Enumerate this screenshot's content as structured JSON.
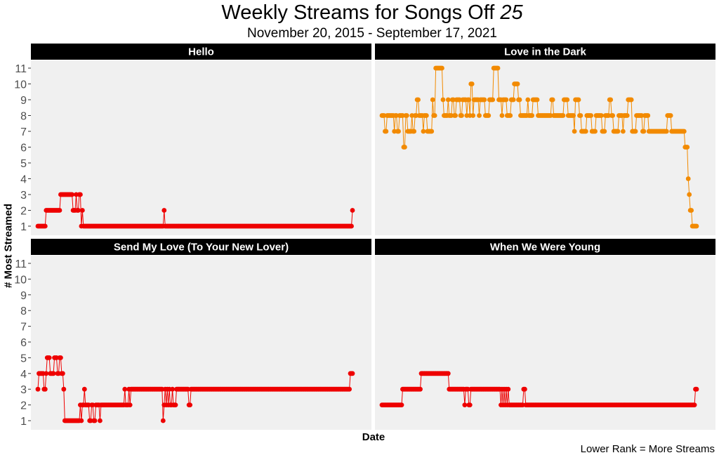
{
  "title_text": "Weekly Streams for Songs Off",
  "title_italic": "25",
  "subtitle": "November 20, 2015 - September 17, 2021",
  "caption": "Lower Rank = More Streams",
  "chart_data": {
    "type": "line",
    "layout": "facet-grid-2x2",
    "xlabel": "Date",
    "ylabel": "# Most Streamed",
    "x_range": [
      "2015-11-20",
      "2021-09-17"
    ],
    "x_step": "weekly",
    "ylim": [
      1,
      11
    ],
    "y_ticks": [
      1,
      2,
      3,
      4,
      5,
      6,
      7,
      8,
      9,
      10,
      11
    ],
    "grid": false,
    "panel_background": "#f0f0f0",
    "strip_background": "#000000",
    "series": [
      {
        "name": "Hello",
        "color": "#ee0000",
        "x": [
          "2015-11-20",
          "2016-01-08",
          "2016-01-15",
          "2016-04-15",
          "2016-04-22",
          "2016-07-08",
          "2016-07-15",
          "2016-07-29",
          "2016-08-05",
          "2016-08-12",
          "2016-08-19",
          "2016-08-26",
          "2016-09-02",
          "2016-09-09",
          "2016-09-16",
          "2016-09-23",
          "2016-09-30",
          "2018-03-16",
          "2018-03-23",
          "2018-03-30",
          "2021-09-03",
          "2021-09-10",
          "2021-09-17"
        ],
        "values": [
          1,
          1,
          2,
          2,
          3,
          3,
          2,
          2,
          3,
          2,
          2,
          3,
          3,
          1,
          2,
          1,
          1,
          1,
          2,
          1,
          1,
          1,
          2
        ]
      },
      {
        "name": "Love in the Dark",
        "color": "#f28a00",
        "x": [
          "2015-11-20",
          "2015-12-04",
          "2015-12-11",
          "2015-12-25",
          "2016-01-01",
          "2016-02-12",
          "2016-02-19",
          "2016-03-04",
          "2016-03-11",
          "2016-03-18",
          "2016-04-08",
          "2016-04-15",
          "2016-04-29",
          "2016-05-13",
          "2016-06-10",
          "2016-06-17",
          "2016-07-01",
          "2016-07-15",
          "2016-07-29",
          "2016-08-26",
          "2016-09-02",
          "2016-09-09",
          "2016-09-23",
          "2016-10-28",
          "2016-11-04",
          "2016-11-18",
          "2017-01-06",
          "2017-01-13",
          "2017-02-10",
          "2017-02-17",
          "2017-03-10",
          "2017-03-24",
          "2017-04-07",
          "2017-05-05",
          "2017-05-19",
          "2017-06-16",
          "2017-06-23",
          "2017-07-07",
          "2017-07-14",
          "2017-07-28",
          "2017-08-04",
          "2017-09-01",
          "2017-09-08",
          "2017-09-15",
          "2017-10-20",
          "2017-11-17",
          "2017-12-15",
          "2018-01-12",
          "2018-01-19",
          "2018-02-09",
          "2018-02-16",
          "2018-03-02",
          "2018-03-16",
          "2018-04-13",
          "2018-05-04",
          "2018-06-01",
          "2018-06-15",
          "2018-08-03",
          "2018-08-10",
          "2018-09-07",
          "2018-09-14",
          "2018-10-12",
          "2019-01-11",
          "2019-01-25",
          "2019-03-01",
          "2019-03-08",
          "2019-04-05",
          "2019-05-03",
          "2019-06-07",
          "2019-06-14",
          "2019-06-21",
          "2019-07-19",
          "2019-08-02",
          "2019-08-09",
          "2019-09-06",
          "2019-10-11",
          "2019-11-08",
          "2019-11-29",
          "2019-12-20",
          "2020-01-10",
          "2020-02-07",
          "2020-02-21",
          "2020-03-06",
          "2020-03-13",
          "2020-04-10",
          "2020-05-08",
          "2020-05-15",
          "2020-06-12",
          "2020-07-10",
          "2020-08-07",
          "2020-09-04",
          "2020-09-18",
          "2020-10-02",
          "2020-10-30",
          "2020-11-13",
          "2021-01-08",
          "2021-02-05",
          "2021-03-05",
          "2021-04-02",
          "2021-04-30",
          "2021-05-28",
          "2021-06-25",
          "2021-07-02",
          "2021-07-23",
          "2021-07-30",
          "2021-08-06",
          "2021-08-20",
          "2021-08-27",
          "2021-09-03",
          "2021-09-10",
          "2021-09-17"
        ],
        "values": [
          8,
          8,
          7,
          8,
          8,
          7,
          8,
          7,
          7,
          8,
          8,
          6,
          8,
          7,
          8,
          7,
          8,
          9,
          8,
          7,
          8,
          8,
          7,
          9,
          8,
          11,
          9,
          8,
          9,
          8,
          9,
          8,
          9,
          8,
          9,
          8,
          9,
          8,
          10,
          8,
          9,
          9,
          8,
          9,
          8,
          9,
          11,
          11,
          9,
          8,
          9,
          9,
          8,
          9,
          10,
          9,
          8,
          9,
          8,
          9,
          9,
          8,
          9,
          8,
          8,
          8,
          9,
          8,
          8,
          7,
          9,
          8,
          7,
          7,
          8,
          7,
          8,
          8,
          7,
          8,
          9,
          8,
          7,
          7,
          8,
          7,
          8,
          9,
          7,
          8,
          8,
          7,
          8,
          7,
          7,
          7,
          7,
          8,
          7,
          7,
          7,
          7,
          6,
          4,
          3,
          2,
          1,
          1,
          1,
          1,
          1
        ]
      },
      {
        "name": "Send My Love (To Your New Lover)",
        "color": "#ee0000",
        "x": [
          "2015-11-20",
          "2015-11-27",
          "2015-12-25",
          "2016-01-01",
          "2016-01-15",
          "2016-01-22",
          "2016-02-05",
          "2016-02-12",
          "2016-03-04",
          "2016-03-11",
          "2016-03-25",
          "2016-04-01",
          "2016-04-15",
          "2016-04-22",
          "2016-04-29",
          "2016-05-13",
          "2016-05-20",
          "2016-05-27",
          "2016-08-26",
          "2016-09-02",
          "2016-09-09",
          "2016-09-16",
          "2016-09-23",
          "2016-09-30",
          "2016-10-07",
          "2016-10-14",
          "2016-10-21",
          "2016-11-04",
          "2016-11-11",
          "2016-11-18",
          "2016-12-02",
          "2016-12-09",
          "2016-12-16",
          "2016-12-23",
          "2017-01-06",
          "2017-01-13",
          "2017-01-20",
          "2017-01-27",
          "2017-02-03",
          "2017-02-10",
          "2017-02-17",
          "2017-02-24",
          "2017-03-03",
          "2017-03-10",
          "2017-03-17",
          "2017-03-24",
          "2017-03-31",
          "2017-04-07",
          "2017-04-14",
          "2017-04-21",
          "2017-05-05",
          "2017-06-16",
          "2017-06-23",
          "2017-06-30",
          "2017-07-07",
          "2017-07-21",
          "2017-07-28",
          "2017-08-04",
          "2017-08-11",
          "2018-03-16",
          "2018-03-23",
          "2018-03-30",
          "2018-04-06",
          "2018-04-13",
          "2018-04-20",
          "2018-04-27",
          "2018-05-04",
          "2018-05-11",
          "2018-05-18",
          "2018-05-25",
          "2018-06-08",
          "2018-06-15",
          "2018-06-22",
          "2018-08-31",
          "2018-09-07",
          "2018-09-14",
          "2018-09-21",
          "2021-08-20",
          "2021-08-27",
          "2021-09-03",
          "2021-09-10",
          "2021-09-17"
        ],
        "values": [
          3,
          4,
          4,
          3,
          4,
          5,
          5,
          4,
          4,
          5,
          5,
          4,
          5,
          5,
          4,
          3,
          1,
          1,
          1,
          2,
          1,
          2,
          2,
          3,
          2,
          2,
          2,
          1,
          1,
          2,
          1,
          1,
          2,
          2,
          2,
          1,
          2,
          2,
          2,
          2,
          2,
          2,
          2,
          2,
          2,
          2,
          2,
          2,
          2,
          2,
          2,
          2,
          2,
          3,
          2,
          2,
          3,
          2,
          3,
          1,
          2,
          3,
          2,
          3,
          2,
          3,
          2,
          2,
          3,
          2,
          2,
          3,
          3,
          3,
          2,
          2,
          3,
          3,
          3,
          4,
          4,
          4
        ]
      },
      {
        "name": "When We Were Young",
        "color": "#ee0000",
        "x": [
          "2015-11-20",
          "2016-04-01",
          "2016-04-08",
          "2016-08-05",
          "2016-08-12",
          "2017-02-10",
          "2017-02-17",
          "2017-05-26",
          "2017-06-02",
          "2017-06-09",
          "2017-06-30",
          "2017-07-07",
          "2017-07-14",
          "2018-01-26",
          "2018-02-02",
          "2018-02-09",
          "2018-02-16",
          "2018-02-23",
          "2018-03-02",
          "2018-03-09",
          "2018-03-16",
          "2018-03-23",
          "2018-03-30",
          "2018-04-06",
          "2018-06-29",
          "2018-07-06",
          "2018-07-13",
          "2018-07-20",
          "2021-09-03",
          "2021-09-10",
          "2021-09-17"
        ],
        "values": [
          2,
          2,
          3,
          3,
          4,
          4,
          3,
          3,
          2,
          3,
          2,
          2,
          3,
          3,
          2,
          3,
          2,
          3,
          2,
          3,
          2,
          3,
          2,
          2,
          2,
          3,
          3,
          2,
          2,
          3,
          3
        ]
      }
    ]
  }
}
